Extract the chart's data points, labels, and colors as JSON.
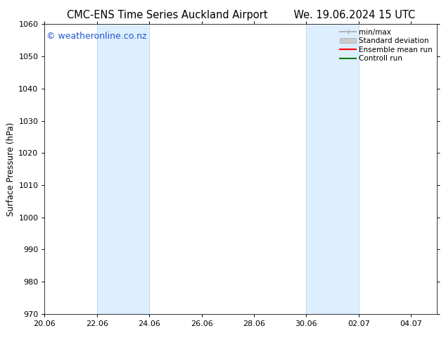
{
  "title_left": "CMC-ENS Time Series Auckland Airport",
  "title_right": "We. 19.06.2024 15 UTC",
  "ylabel": "Surface Pressure (hPa)",
  "ylim": [
    970,
    1060
  ],
  "yticks": [
    970,
    980,
    990,
    1000,
    1010,
    1020,
    1030,
    1040,
    1050,
    1060
  ],
  "xtick_labels": [
    "20.06",
    "22.06",
    "24.06",
    "26.06",
    "28.06",
    "30.06",
    "02.07",
    "04.07"
  ],
  "xtick_positions_days": [
    0,
    2,
    4,
    6,
    8,
    10,
    12,
    14
  ],
  "xlim_days": [
    0,
    15
  ],
  "shaded_bands": [
    {
      "x_start_day": 2,
      "x_end_day": 4
    },
    {
      "x_start_day": 10,
      "x_end_day": 12
    }
  ],
  "band_color": "#ddeeff",
  "band_edge_color": "#b8d4ee",
  "watermark_text": "© weatheronline.co.nz",
  "watermark_color": "#2255cc",
  "watermark_fontsize": 9,
  "legend_entries": [
    {
      "label": "min/max",
      "color": "#aaaaaa",
      "lw": 1.2,
      "style": "minmax"
    },
    {
      "label": "Standard deviation",
      "color": "#cccccc",
      "lw": 6,
      "style": "stddev"
    },
    {
      "label": "Ensemble mean run",
      "color": "#ff0000",
      "lw": 1.5,
      "style": "line"
    },
    {
      "label": "Controll run",
      "color": "#008000",
      "lw": 1.5,
      "style": "line"
    }
  ],
  "bg_color": "#ffffff",
  "plot_bg_color": "#ffffff",
  "title_fontsize": 10.5,
  "axis_fontsize": 8.5,
  "tick_fontsize": 8,
  "legend_fontsize": 7.5
}
